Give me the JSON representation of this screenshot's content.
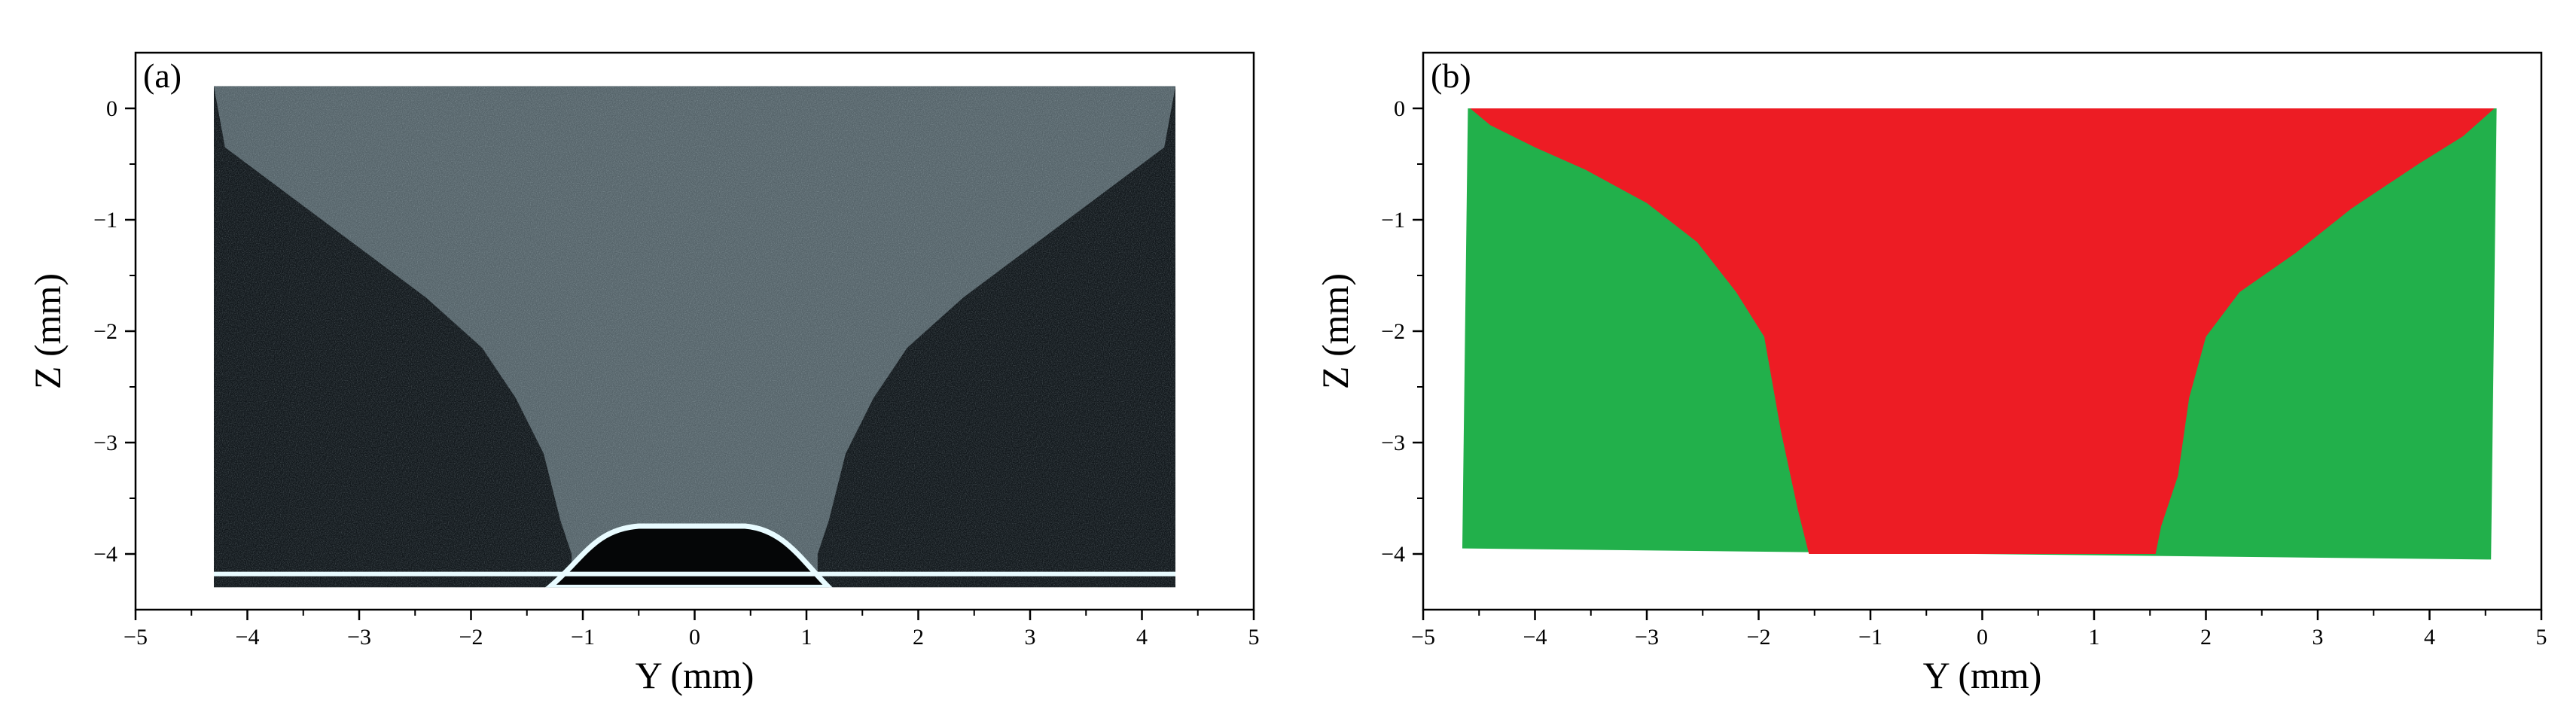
{
  "figure": {
    "panels": [
      {
        "label": "(a)"
      },
      {
        "label": "(b)"
      }
    ]
  },
  "chart_data": [
    {
      "type": "image",
      "panel": "(a)",
      "xlabel": "Y (mm)",
      "ylabel": "Z (mm)",
      "xlim": [
        -5,
        5
      ],
      "ylim": [
        -4.5,
        0.5
      ],
      "xticks": [
        -5,
        -4,
        -3,
        -2,
        -1,
        0,
        1,
        2,
        3,
        4,
        5
      ],
      "yticks": [
        0,
        -1,
        -2,
        -3,
        -4
      ],
      "grid": false,
      "image_extent": {
        "y_range": [
          -4.3,
          4.3
        ],
        "z_range": [
          -4.3,
          0.2
        ]
      },
      "fusion_boundary": [
        [
          -4.2,
          -0.35
        ],
        [
          -3.6,
          -0.8
        ],
        [
          -3.0,
          -1.25
        ],
        [
          -2.4,
          -1.7
        ],
        [
          -1.9,
          -2.15
        ],
        [
          -1.6,
          -2.6
        ],
        [
          -1.35,
          -3.1
        ],
        [
          -1.2,
          -3.7
        ],
        [
          -1.1,
          -4.0
        ]
      ],
      "colors": {
        "background": "#12181c",
        "fusion_zone": "#56646a",
        "bright_edge": "#e8fbff"
      }
    },
    {
      "type": "area",
      "panel": "(b)",
      "xlabel": "Y (mm)",
      "ylabel": "Z (mm)",
      "xlim": [
        -5,
        5
      ],
      "ylim": [
        -4.5,
        0.5
      ],
      "xticks": [
        -5,
        -4,
        -3,
        -2,
        -1,
        0,
        1,
        2,
        3,
        4,
        5
      ],
      "yticks": [
        0,
        -1,
        -2,
        -3,
        -4
      ],
      "grid": false,
      "regions": [
        {
          "color": "#22b04b",
          "polygon": [
            [
              -4.6,
              0.0
            ],
            [
              4.6,
              0.0
            ],
            [
              4.55,
              -4.05
            ],
            [
              -4.65,
              -3.95
            ]
          ]
        },
        {
          "color": "#ed1c24",
          "polygon": [
            [
              -4.58,
              0.0
            ],
            [
              4.58,
              0.0
            ],
            [
              4.3,
              -0.25
            ],
            [
              3.9,
              -0.5
            ],
            [
              3.3,
              -0.9
            ],
            [
              2.8,
              -1.3
            ],
            [
              2.3,
              -1.65
            ],
            [
              2.0,
              -2.05
            ],
            [
              1.85,
              -2.6
            ],
            [
              1.75,
              -3.3
            ],
            [
              1.6,
              -3.75
            ],
            [
              1.55,
              -4.0
            ],
            [
              -1.55,
              -4.0
            ],
            [
              -1.65,
              -3.6
            ],
            [
              -1.8,
              -2.9
            ],
            [
              -1.95,
              -2.05
            ],
            [
              -2.2,
              -1.65
            ],
            [
              -2.55,
              -1.2
            ],
            [
              -3.0,
              -0.85
            ],
            [
              -3.55,
              -0.55
            ],
            [
              -4.0,
              -0.35
            ],
            [
              -4.4,
              -0.15
            ]
          ]
        }
      ]
    }
  ]
}
